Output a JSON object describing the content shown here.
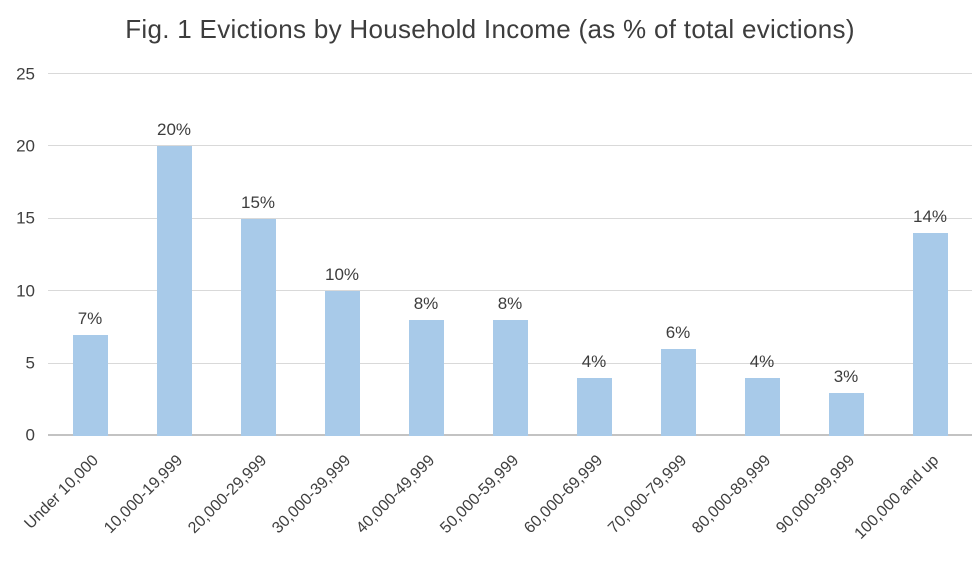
{
  "title": "Fig. 1 Evictions by Household Income (as % of total evictions)",
  "chart_data": {
    "type": "bar",
    "title": "Fig. 1 Evictions by Household Income (as % of total evictions)",
    "categories": [
      "Under 10,000",
      "10,000-19,999",
      "20,000-29,999",
      "30,000-39,999",
      "40,000-49,999",
      "50,000-59,999",
      "60,000-69,999",
      "70,000-79,999",
      "80,000-89,999",
      "90,000-99,999",
      "100,000 and up"
    ],
    "values": [
      7,
      20,
      15,
      10,
      8,
      8,
      4,
      6,
      4,
      3,
      14
    ],
    "value_labels": [
      "7%",
      "20%",
      "15%",
      "10%",
      "8%",
      "8%",
      "4%",
      "6%",
      "4%",
      "3%",
      "14%"
    ],
    "xlabel": "",
    "ylabel": "",
    "ylim": [
      0,
      25
    ],
    "yticks": [
      0,
      5,
      10,
      15,
      20,
      25
    ],
    "grid": true,
    "legend": "none",
    "colors": {
      "bar_fill": "#a8cae9",
      "gridline": "#d9d9d9",
      "axis_line": "#c3c3c3",
      "text": "#3f3f3f",
      "background": "#ffffff"
    }
  }
}
